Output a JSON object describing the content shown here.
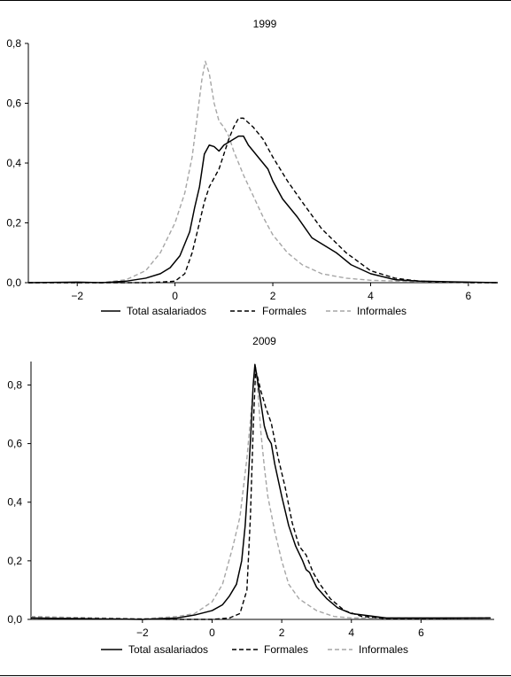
{
  "colors": {
    "total": "#000000",
    "formales": "#000000",
    "informales": "#a6a6a6",
    "axis": "#000000"
  },
  "chart_data": [
    {
      "type": "line",
      "title": "1999",
      "xlabel": "",
      "ylabel": "",
      "xlim": [
        -3,
        6.6
      ],
      "ylim": [
        0,
        0.8
      ],
      "xticks": [
        -2,
        0,
        2,
        4,
        6
      ],
      "xtick_labels": [
        "−2",
        "0",
        "2",
        "4",
        "6"
      ],
      "yticks": [
        0,
        0.2,
        0.4,
        0.6,
        0.8
      ],
      "ytick_labels": [
        "0,0",
        "0,2",
        "0,4",
        "0,6",
        "0,8"
      ],
      "grid": false,
      "legend_position": "bottom",
      "series": [
        {
          "name": "Total asalariados",
          "style": "solid",
          "points": [
            [
              -3.0,
              0.0
            ],
            [
              -2.0,
              0.002
            ],
            [
              -1.5,
              0.0
            ],
            [
              -1.0,
              0.005
            ],
            [
              -0.6,
              0.015
            ],
            [
              -0.3,
              0.03
            ],
            [
              -0.1,
              0.05
            ],
            [
              0.1,
              0.09
            ],
            [
              0.3,
              0.17
            ],
            [
              0.4,
              0.25
            ],
            [
              0.5,
              0.32
            ],
            [
              0.6,
              0.43
            ],
            [
              0.7,
              0.46
            ],
            [
              0.8,
              0.455
            ],
            [
              0.9,
              0.44
            ],
            [
              1.0,
              0.46
            ],
            [
              1.1,
              0.47
            ],
            [
              1.2,
              0.48
            ],
            [
              1.3,
              0.49
            ],
            [
              1.4,
              0.49
            ],
            [
              1.5,
              0.46
            ],
            [
              1.7,
              0.42
            ],
            [
              1.9,
              0.38
            ],
            [
              2.0,
              0.34
            ],
            [
              2.2,
              0.28
            ],
            [
              2.5,
              0.22
            ],
            [
              2.8,
              0.15
            ],
            [
              3.0,
              0.13
            ],
            [
              3.3,
              0.1
            ],
            [
              3.6,
              0.06
            ],
            [
              4.0,
              0.03
            ],
            [
              4.5,
              0.01
            ],
            [
              5.0,
              0.005
            ],
            [
              6.0,
              0.002
            ],
            [
              6.6,
              0.0
            ]
          ]
        },
        {
          "name": "Formales",
          "style": "dashed",
          "points": [
            [
              -3.0,
              0.0
            ],
            [
              -1.0,
              0.0
            ],
            [
              -0.5,
              0.0
            ],
            [
              0.0,
              0.005
            ],
            [
              0.2,
              0.03
            ],
            [
              0.35,
              0.1
            ],
            [
              0.5,
              0.2
            ],
            [
              0.6,
              0.27
            ],
            [
              0.7,
              0.32
            ],
            [
              0.8,
              0.35
            ],
            [
              0.9,
              0.38
            ],
            [
              1.0,
              0.43
            ],
            [
              1.1,
              0.48
            ],
            [
              1.2,
              0.52
            ],
            [
              1.3,
              0.55
            ],
            [
              1.4,
              0.55
            ],
            [
              1.6,
              0.52
            ],
            [
              1.8,
              0.48
            ],
            [
              2.0,
              0.42
            ],
            [
              2.3,
              0.34
            ],
            [
              2.6,
              0.27
            ],
            [
              3.0,
              0.18
            ],
            [
              3.5,
              0.1
            ],
            [
              4.0,
              0.04
            ],
            [
              4.5,
              0.015
            ],
            [
              5.0,
              0.005
            ],
            [
              6.0,
              0.0
            ],
            [
              6.6,
              0.0
            ]
          ]
        },
        {
          "name": "Informales",
          "style": "dashed",
          "points": [
            [
              -3.0,
              0.0
            ],
            [
              -1.5,
              0.0
            ],
            [
              -1.0,
              0.01
            ],
            [
              -0.6,
              0.04
            ],
            [
              -0.3,
              0.1
            ],
            [
              0.0,
              0.2
            ],
            [
              0.2,
              0.3
            ],
            [
              0.35,
              0.42
            ],
            [
              0.45,
              0.55
            ],
            [
              0.55,
              0.68
            ],
            [
              0.62,
              0.74
            ],
            [
              0.7,
              0.7
            ],
            [
              0.8,
              0.6
            ],
            [
              0.9,
              0.54
            ],
            [
              1.0,
              0.52
            ],
            [
              1.1,
              0.49
            ],
            [
              1.2,
              0.44
            ],
            [
              1.4,
              0.36
            ],
            [
              1.6,
              0.29
            ],
            [
              1.8,
              0.22
            ],
            [
              2.0,
              0.16
            ],
            [
              2.3,
              0.1
            ],
            [
              2.6,
              0.06
            ],
            [
              3.0,
              0.03
            ],
            [
              3.5,
              0.015
            ],
            [
              4.0,
              0.008
            ],
            [
              5.0,
              0.003
            ],
            [
              6.6,
              0.0
            ]
          ]
        }
      ]
    },
    {
      "type": "line",
      "title": "2009",
      "xlabel": "",
      "ylabel": "",
      "xlim": [
        -5.2,
        8.1
      ],
      "ylim": [
        0,
        0.88
      ],
      "xticks": [
        -2,
        0,
        2,
        4,
        6
      ],
      "xtick_labels": [
        "−2",
        "0",
        "2",
        "4",
        "6"
      ],
      "yticks": [
        0,
        0.2,
        0.4,
        0.6,
        0.8
      ],
      "ytick_labels": [
        "0,0",
        "0,2",
        "0,4",
        "0,6",
        "0,8"
      ],
      "grid": false,
      "legend_position": "bottom",
      "series": [
        {
          "name": "Total asalariados",
          "style": "solid",
          "points": [
            [
              -5.2,
              0.005
            ],
            [
              -2.0,
              0.0
            ],
            [
              -1.0,
              0.005
            ],
            [
              -0.5,
              0.015
            ],
            [
              0.0,
              0.03
            ],
            [
              0.3,
              0.05
            ],
            [
              0.5,
              0.08
            ],
            [
              0.7,
              0.12
            ],
            [
              0.85,
              0.2
            ],
            [
              0.95,
              0.32
            ],
            [
              1.05,
              0.5
            ],
            [
              1.12,
              0.65
            ],
            [
              1.18,
              0.8
            ],
            [
              1.23,
              0.87
            ],
            [
              1.3,
              0.82
            ],
            [
              1.4,
              0.74
            ],
            [
              1.5,
              0.66
            ],
            [
              1.6,
              0.62
            ],
            [
              1.7,
              0.6
            ],
            [
              1.8,
              0.53
            ],
            [
              2.0,
              0.42
            ],
            [
              2.2,
              0.32
            ],
            [
              2.4,
              0.25
            ],
            [
              2.6,
              0.2
            ],
            [
              2.7,
              0.17
            ],
            [
              2.8,
              0.16
            ],
            [
              3.0,
              0.11
            ],
            [
              3.3,
              0.07
            ],
            [
              3.6,
              0.04
            ],
            [
              4.0,
              0.02
            ],
            [
              5.0,
              0.005
            ],
            [
              8.0,
              0.005
            ]
          ]
        },
        {
          "name": "Formales",
          "style": "dashed",
          "points": [
            [
              -5.2,
              0.005
            ],
            [
              -1.0,
              0.0
            ],
            [
              0.0,
              0.0
            ],
            [
              0.5,
              0.005
            ],
            [
              0.8,
              0.02
            ],
            [
              1.0,
              0.1
            ],
            [
              1.1,
              0.35
            ],
            [
              1.18,
              0.65
            ],
            [
              1.25,
              0.85
            ],
            [
              1.3,
              0.83
            ],
            [
              1.4,
              0.78
            ],
            [
              1.55,
              0.72
            ],
            [
              1.7,
              0.67
            ],
            [
              1.9,
              0.55
            ],
            [
              2.1,
              0.45
            ],
            [
              2.3,
              0.33
            ],
            [
              2.5,
              0.25
            ],
            [
              2.7,
              0.22
            ],
            [
              2.9,
              0.16
            ],
            [
              3.1,
              0.12
            ],
            [
              3.4,
              0.07
            ],
            [
              3.8,
              0.03
            ],
            [
              4.3,
              0.01
            ],
            [
              5.0,
              0.003
            ],
            [
              8.0,
              0.005
            ]
          ]
        },
        {
          "name": "Informales",
          "style": "dashed",
          "points": [
            [
              -5.2,
              0.01
            ],
            [
              -2.0,
              0.002
            ],
            [
              -1.0,
              0.01
            ],
            [
              -0.5,
              0.02
            ],
            [
              0.0,
              0.06
            ],
            [
              0.3,
              0.12
            ],
            [
              0.6,
              0.25
            ],
            [
              0.8,
              0.35
            ],
            [
              1.0,
              0.55
            ],
            [
              1.1,
              0.68
            ],
            [
              1.2,
              0.82
            ],
            [
              1.25,
              0.86
            ],
            [
              1.3,
              0.8
            ],
            [
              1.4,
              0.64
            ],
            [
              1.5,
              0.52
            ],
            [
              1.6,
              0.42
            ],
            [
              1.8,
              0.3
            ],
            [
              2.0,
              0.2
            ],
            [
              2.2,
              0.12
            ],
            [
              2.5,
              0.07
            ],
            [
              3.0,
              0.03
            ],
            [
              3.5,
              0.01
            ],
            [
              4.0,
              0.005
            ],
            [
              8.0,
              0.003
            ]
          ]
        }
      ]
    }
  ]
}
